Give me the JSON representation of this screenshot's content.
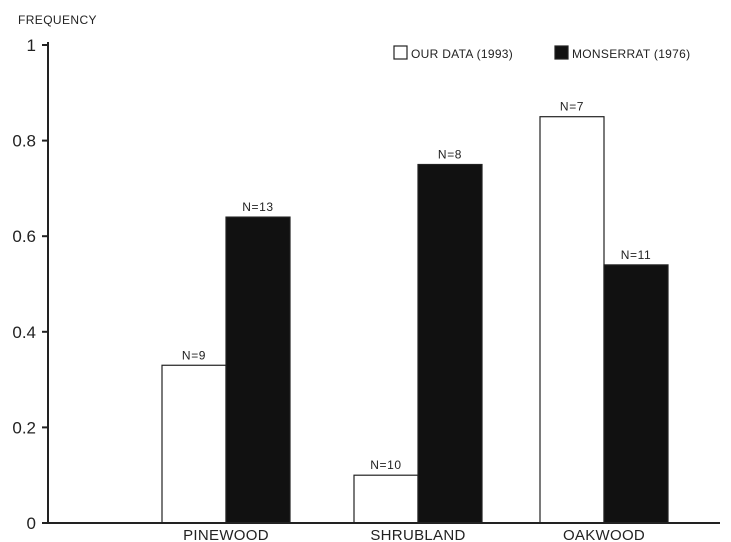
{
  "chart_data": {
    "type": "bar",
    "ylabel": "FREQUENCY",
    "xlabel": "",
    "ylim": [
      0,
      1
    ],
    "yticks": [
      "0",
      "0.2",
      "0.4",
      "0.6",
      "0.8",
      "1"
    ],
    "categories": [
      "PINEWOOD",
      "SHRUBLAND",
      "OAKWOOD"
    ],
    "series": [
      {
        "name": "OUR DATA (1993)",
        "fill": "#ffffff",
        "values": [
          0.33,
          0.1,
          0.85
        ],
        "labels": [
          "N=9",
          "N=10",
          "N=7"
        ]
      },
      {
        "name": "MONSERRAT (1976)",
        "fill": "#111111",
        "values": [
          0.64,
          0.75,
          0.54
        ],
        "labels": [
          "N=13",
          "N=8",
          "N=11"
        ]
      }
    ],
    "grid": false,
    "legend_position": "top-right"
  }
}
